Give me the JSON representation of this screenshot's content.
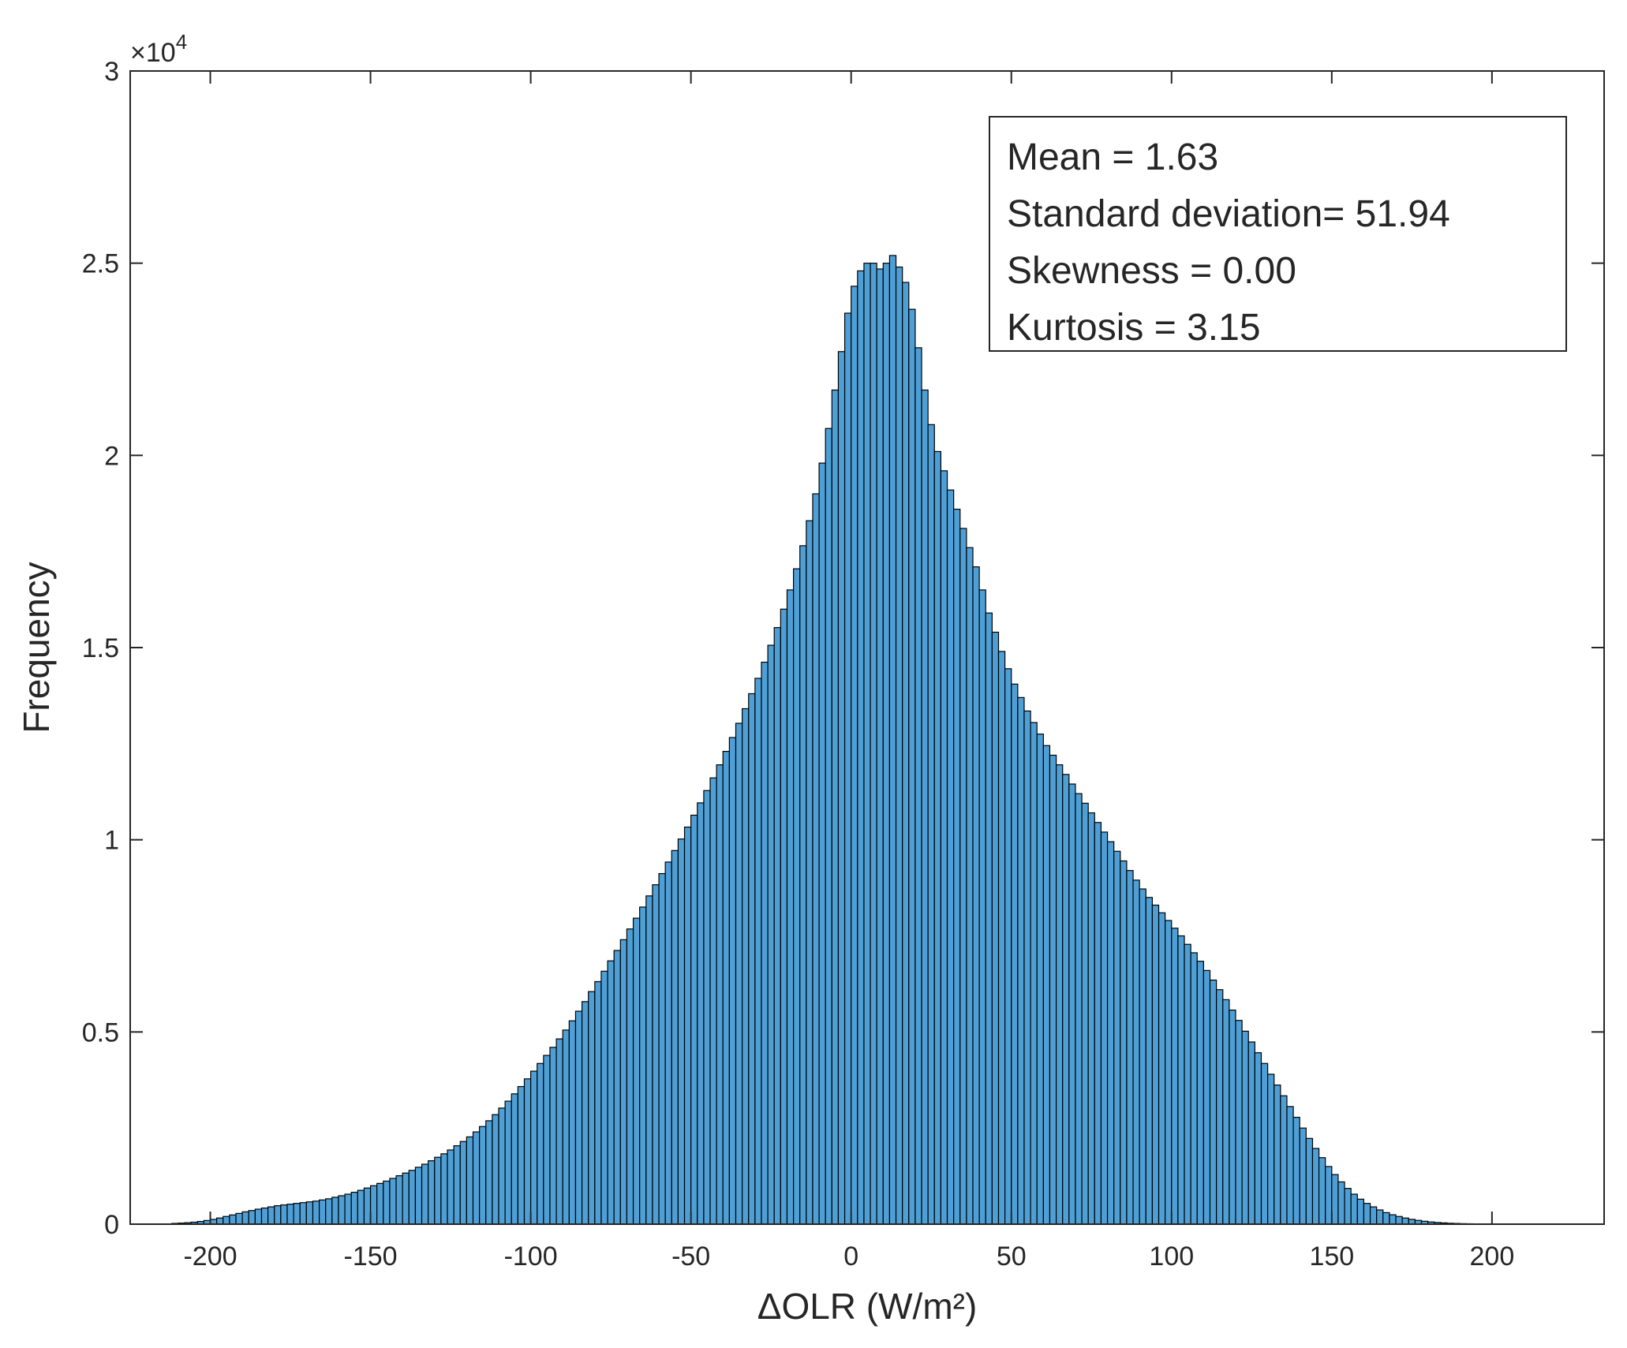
{
  "chart_data": {
    "type": "bar",
    "xlabel": "ΔOLR (W/m²)",
    "ylabel": "Frequency",
    "xlim": [
      -225,
      235
    ],
    "ylim": [
      0,
      30000
    ],
    "y_exponent_label": "×10",
    "y_exponent_power": "4",
    "x_ticks": [
      -200,
      -150,
      -100,
      -50,
      0,
      50,
      100,
      150,
      200
    ],
    "x_tick_labels": [
      "-200",
      "-150",
      "-100",
      "-50",
      "0",
      "50",
      "100",
      "150",
      "200"
    ],
    "y_ticks": [
      0,
      5000,
      10000,
      15000,
      20000,
      25000,
      30000
    ],
    "y_tick_labels": [
      "0",
      "0.5",
      "1",
      "1.5",
      "2",
      "2.5",
      "3"
    ],
    "grid": false,
    "bar_color": "#4e9fd6",
    "bar_edge_color": "#000000",
    "bin_width": 2,
    "bin_start": -212,
    "values": [
      20,
      28,
      38,
      52,
      70,
      95,
      125,
      160,
      200,
      240,
      280,
      320,
      355,
      390,
      420,
      450,
      480,
      500,
      520,
      540,
      560,
      580,
      600,
      630,
      660,
      700,
      740,
      780,
      830,
      880,
      940,
      1000,
      1060,
      1120,
      1190,
      1260,
      1330,
      1400,
      1480,
      1560,
      1650,
      1740,
      1830,
      1930,
      2040,
      2150,
      2270,
      2400,
      2540,
      2690,
      2850,
      3020,
      3200,
      3390,
      3580,
      3780,
      3980,
      4180,
      4390,
      4600,
      4820,
      5050,
      5290,
      5540,
      5790,
      6050,
      6310,
      6580,
      6850,
      7120,
      7400,
      7680,
      7960,
      8250,
      8540,
      8830,
      9120,
      9420,
      9720,
      10020,
      10330,
      10640,
      10960,
      11280,
      11610,
      11950,
      12300,
      12660,
      13030,
      13410,
      13800,
      14200,
      14620,
      15060,
      15520,
      16000,
      16500,
      17050,
      17650,
      18300,
      19000,
      19800,
      20700,
      21700,
      22700,
      23700,
      24400,
      24800,
      25000,
      25000,
      24850,
      25000,
      25200,
      24900,
      24500,
      23800,
      22800,
      21700,
      20800,
      20100,
      19600,
      19100,
      18600,
      18100,
      17600,
      17100,
      16500,
      15900,
      15400,
      14900,
      14450,
      14050,
      13700,
      13350,
      13050,
      12750,
      12450,
      12200,
      11950,
      11700,
      11450,
      11200,
      10950,
      10700,
      10450,
      10200,
      9950,
      9700,
      9450,
      9200,
      8950,
      8720,
      8500,
      8300,
      8100,
      7900,
      7700,
      7500,
      7280,
      7060,
      6840,
      6600,
      6350,
      6100,
      5840,
      5570,
      5300,
      5020,
      4740,
      4460,
      4180,
      3900,
      3620,
      3340,
      3060,
      2780,
      2500,
      2230,
      1970,
      1730,
      1500,
      1290,
      1100,
      930,
      780,
      650,
      540,
      450,
      370,
      300,
      245,
      200,
      160,
      125,
      98,
      76,
      58,
      44,
      33,
      24,
      18,
      13,
      10,
      7,
      5,
      4,
      3,
      2,
      2,
      1
    ]
  },
  "stats_box": {
    "lines": [
      "Mean = 1.63",
      "Standard deviation= 51.94",
      "Skewness = 0.00",
      "Kurtosis = 3.15"
    ]
  },
  "colors": {
    "axis": "#262626",
    "bar_fill": "#4e9fd6",
    "bar_edge": "#000000",
    "background": "#ffffff"
  }
}
